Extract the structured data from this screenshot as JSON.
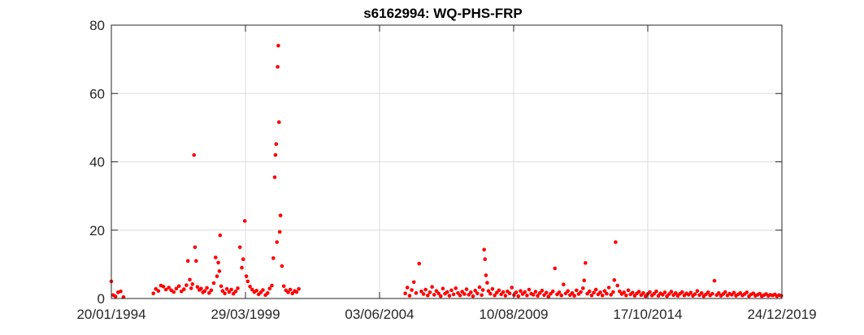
{
  "chart_data": {
    "type": "scatter",
    "title": "s6162994: WQ-PHS-FRP",
    "xlabel": "",
    "ylabel": "",
    "x_axis": {
      "type": "date",
      "range": [
        "1994-01-20",
        "2019-12-24"
      ],
      "ticks": [
        "1994-01-20",
        "1999-03-29",
        "2004-06-03",
        "2009-08-10",
        "2014-10-17",
        "2019-12-24"
      ],
      "tick_labels": [
        "20/01/1994",
        "29/03/1999",
        "03/06/2004",
        "10/08/2009",
        "17/10/2014",
        "24/12/2019"
      ]
    },
    "y_axis": {
      "range": [
        0,
        80
      ],
      "ticks": [
        0,
        20,
        40,
        60,
        80
      ]
    },
    "grid": true,
    "marker_color": "#ff0000",
    "series": [
      {
        "points": [
          [
            "1994-01-20",
            5.0
          ],
          [
            "1994-02-15",
            1.0
          ],
          [
            "1994-03-20",
            0.6
          ],
          [
            "1994-04-25",
            1.8
          ],
          [
            "1994-06-01",
            2.1
          ],
          [
            "1994-07-10",
            0.4
          ],
          [
            "1995-09-05",
            1.5
          ],
          [
            "1995-10-10",
            2.8
          ],
          [
            "1995-11-15",
            2.2
          ],
          [
            "1995-12-20",
            3.8
          ],
          [
            "1996-01-25",
            3.5
          ],
          [
            "1996-03-01",
            2.6
          ],
          [
            "1996-04-10",
            3.2
          ],
          [
            "1996-05-15",
            2.4
          ],
          [
            "1996-06-20",
            1.9
          ],
          [
            "1996-07-25",
            2.9
          ],
          [
            "1996-09-01",
            3.6
          ],
          [
            "1996-10-05",
            2.1
          ],
          [
            "1996-11-10",
            2.7
          ],
          [
            "1996-12-15",
            3.9
          ],
          [
            "1997-01-05",
            11.0
          ],
          [
            "1997-02-01",
            5.5
          ],
          [
            "1997-02-20",
            3.0
          ],
          [
            "1997-03-10",
            4.2
          ],
          [
            "1997-04-01",
            42.0
          ],
          [
            "1997-04-15",
            15.0
          ],
          [
            "1997-05-01",
            11.0
          ],
          [
            "1997-05-20",
            3.4
          ],
          [
            "1997-06-15",
            2.5
          ],
          [
            "1997-07-10",
            2.9
          ],
          [
            "1997-08-05",
            1.8
          ],
          [
            "1997-09-01",
            2.2
          ],
          [
            "1997-10-01",
            3.1
          ],
          [
            "1997-11-01",
            1.6
          ],
          [
            "1997-12-01",
            2.4
          ],
          [
            "1998-01-05",
            4.5
          ],
          [
            "1998-02-01",
            12.0
          ],
          [
            "1998-02-20",
            6.5
          ],
          [
            "1998-03-10",
            10.5
          ],
          [
            "1998-03-25",
            8.0
          ],
          [
            "1998-04-05",
            18.5
          ],
          [
            "1998-04-20",
            3.6
          ],
          [
            "1998-05-10",
            2.2
          ],
          [
            "1998-06-10",
            1.5
          ],
          [
            "1998-07-10",
            2.8
          ],
          [
            "1998-08-10",
            1.9
          ],
          [
            "1998-09-10",
            2.6
          ],
          [
            "1998-10-10",
            1.4
          ],
          [
            "1998-11-10",
            2.1
          ],
          [
            "1998-12-10",
            3.0
          ],
          [
            "1999-01-10",
            15.0
          ],
          [
            "1999-02-05",
            9.0
          ],
          [
            "1999-02-25",
            11.5
          ],
          [
            "1999-03-20",
            22.7
          ],
          [
            "1999-04-10",
            6.5
          ],
          [
            "1999-05-01",
            5.0
          ],
          [
            "1999-06-01",
            3.5
          ],
          [
            "1999-07-01",
            2.6
          ],
          [
            "1999-08-01",
            1.9
          ],
          [
            "1999-09-01",
            2.3
          ],
          [
            "1999-10-01",
            1.2
          ],
          [
            "1999-11-01",
            1.8
          ],
          [
            "1999-12-01",
            2.5
          ],
          [
            "2000-01-05",
            1.0
          ],
          [
            "2000-02-05",
            1.6
          ],
          [
            "2000-03-05",
            2.9
          ],
          [
            "2000-04-05",
            3.8
          ],
          [
            "2000-04-25",
            11.8
          ],
          [
            "2000-05-15",
            35.5
          ],
          [
            "2000-05-25",
            42.0
          ],
          [
            "2000-06-05",
            45.2
          ],
          [
            "2000-06-15",
            16.5
          ],
          [
            "2000-06-25",
            67.8
          ],
          [
            "2000-07-05",
            74.0
          ],
          [
            "2000-07-15",
            51.6
          ],
          [
            "2000-07-25",
            19.5
          ],
          [
            "2000-08-05",
            24.3
          ],
          [
            "2000-08-25",
            9.5
          ],
          [
            "2000-09-20",
            3.6
          ],
          [
            "2000-10-20",
            2.4
          ],
          [
            "2000-11-20",
            1.8
          ],
          [
            "2000-12-20",
            2.6
          ],
          [
            "2001-01-20",
            1.5
          ],
          [
            "2001-02-20",
            2.2
          ],
          [
            "2001-03-20",
            1.9
          ],
          [
            "2001-04-20",
            2.8
          ],
          [
            "2005-06-01",
            1.5
          ],
          [
            "2005-07-01",
            3.2
          ],
          [
            "2005-08-01",
            0.8
          ],
          [
            "2005-09-01",
            2.5
          ],
          [
            "2005-10-01",
            4.8
          ],
          [
            "2005-11-01",
            1.6
          ],
          [
            "2005-12-15",
            10.2
          ],
          [
            "2006-01-15",
            2.1
          ],
          [
            "2006-02-15",
            1.3
          ],
          [
            "2006-03-15",
            2.6
          ],
          [
            "2006-04-15",
            0.9
          ],
          [
            "2006-05-15",
            1.8
          ],
          [
            "2006-06-15",
            3.4
          ],
          [
            "2006-07-15",
            1.1
          ],
          [
            "2006-08-15",
            2.2
          ],
          [
            "2006-09-15",
            1.5
          ],
          [
            "2006-10-15",
            0.7
          ],
          [
            "2006-11-15",
            2.9
          ],
          [
            "2006-12-15",
            1.4
          ],
          [
            "2007-01-15",
            1.9
          ],
          [
            "2007-02-15",
            0.8
          ],
          [
            "2007-03-15",
            2.4
          ],
          [
            "2007-04-15",
            1.2
          ],
          [
            "2007-05-15",
            3.0
          ],
          [
            "2007-06-15",
            1.6
          ],
          [
            "2007-07-15",
            0.9
          ],
          [
            "2007-08-15",
            2.0
          ],
          [
            "2007-09-15",
            1.3
          ],
          [
            "2007-10-15",
            2.7
          ],
          [
            "2007-11-15",
            1.1
          ],
          [
            "2007-12-15",
            1.8
          ],
          [
            "2008-01-15",
            0.7
          ],
          [
            "2008-02-15",
            2.3
          ],
          [
            "2008-03-15",
            1.5
          ],
          [
            "2008-04-15",
            3.3
          ],
          [
            "2008-05-15",
            1.0
          ],
          [
            "2008-06-01",
            2.5
          ],
          [
            "2008-06-20",
            14.3
          ],
          [
            "2008-07-01",
            11.5
          ],
          [
            "2008-07-15",
            6.8
          ],
          [
            "2008-08-01",
            4.6
          ],
          [
            "2008-08-20",
            2.2
          ],
          [
            "2008-09-15",
            1.4
          ],
          [
            "2008-10-15",
            2.8
          ],
          [
            "2008-11-15",
            0.9
          ],
          [
            "2008-12-15",
            1.7
          ],
          [
            "2009-01-15",
            2.4
          ],
          [
            "2009-02-15",
            1.2
          ],
          [
            "2009-03-15",
            1.9
          ],
          [
            "2009-04-15",
            0.8
          ],
          [
            "2009-05-15",
            2.1
          ],
          [
            "2009-06-15",
            1.5
          ],
          [
            "2009-07-15",
            3.2
          ],
          [
            "2009-08-15",
            1.0
          ],
          [
            "2009-09-15",
            1.8
          ],
          [
            "2009-10-15",
            0.7
          ],
          [
            "2009-11-15",
            2.2
          ],
          [
            "2009-12-15",
            1.3
          ],
          [
            "2010-01-15",
            1.9
          ],
          [
            "2010-02-15",
            0.9
          ],
          [
            "2010-03-15",
            2.6
          ],
          [
            "2010-04-15",
            1.4
          ],
          [
            "2010-05-15",
            1.1
          ],
          [
            "2010-06-15",
            2.0
          ],
          [
            "2010-07-15",
            0.8
          ],
          [
            "2010-08-15",
            1.6
          ],
          [
            "2010-09-15",
            2.3
          ],
          [
            "2010-10-15",
            1.0
          ],
          [
            "2010-11-15",
            1.7
          ],
          [
            "2010-12-15",
            0.6
          ],
          [
            "2011-01-15",
            1.4
          ],
          [
            "2011-02-15",
            2.1
          ],
          [
            "2011-03-15",
            8.8
          ],
          [
            "2011-04-15",
            1.2
          ],
          [
            "2011-05-15",
            1.8
          ],
          [
            "2011-06-15",
            0.9
          ],
          [
            "2011-07-15",
            4.1
          ],
          [
            "2011-08-15",
            1.5
          ],
          [
            "2011-09-15",
            2.2
          ],
          [
            "2011-10-15",
            1.0
          ],
          [
            "2011-11-15",
            1.6
          ],
          [
            "2011-12-15",
            0.8
          ],
          [
            "2012-01-15",
            2.4
          ],
          [
            "2012-02-15",
            1.3
          ],
          [
            "2012-03-15",
            1.9
          ],
          [
            "2012-04-15",
            3.0
          ],
          [
            "2012-05-01",
            5.3
          ],
          [
            "2012-05-20",
            10.4
          ],
          [
            "2012-06-15",
            1.4
          ],
          [
            "2012-07-15",
            2.1
          ],
          [
            "2012-08-15",
            0.9
          ],
          [
            "2012-09-15",
            1.7
          ],
          [
            "2012-10-15",
            2.6
          ],
          [
            "2012-11-15",
            1.2
          ],
          [
            "2012-12-15",
            1.8
          ],
          [
            "2013-01-15",
            0.9
          ],
          [
            "2013-02-15",
            2.2
          ],
          [
            "2013-03-15",
            1.4
          ],
          [
            "2013-04-15",
            3.2
          ],
          [
            "2013-05-15",
            1.1
          ],
          [
            "2013-06-15",
            1.9
          ],
          [
            "2013-07-01",
            5.4
          ],
          [
            "2013-07-20",
            16.5
          ],
          [
            "2013-08-15",
            3.8
          ],
          [
            "2013-09-15",
            2.1
          ],
          [
            "2013-10-15",
            1.3
          ],
          [
            "2013-11-15",
            1.8
          ],
          [
            "2013-12-15",
            0.9
          ],
          [
            "2014-01-15",
            2.4
          ],
          [
            "2014-02-15",
            1.2
          ],
          [
            "2014-03-15",
            1.7
          ],
          [
            "2014-04-15",
            0.8
          ],
          [
            "2014-05-15",
            1.5
          ],
          [
            "2014-06-15",
            2.0
          ],
          [
            "2014-07-15",
            1.0
          ],
          [
            "2014-08-15",
            1.6
          ],
          [
            "2014-09-15",
            0.7
          ],
          [
            "2014-10-15",
            1.3
          ],
          [
            "2014-11-15",
            1.9
          ],
          [
            "2014-12-15",
            0.9
          ],
          [
            "2015-01-15",
            1.4
          ],
          [
            "2015-02-15",
            2.1
          ],
          [
            "2015-03-15",
            0.8
          ],
          [
            "2015-04-15",
            1.5
          ],
          [
            "2015-05-15",
            1.1
          ],
          [
            "2015-06-15",
            1.8
          ],
          [
            "2015-07-15",
            0.7
          ],
          [
            "2015-08-15",
            1.3
          ],
          [
            "2015-09-15",
            2.0
          ],
          [
            "2015-10-15",
            1.0
          ],
          [
            "2015-11-15",
            1.6
          ],
          [
            "2015-12-15",
            0.8
          ],
          [
            "2016-01-15",
            1.4
          ],
          [
            "2016-02-15",
            1.9
          ],
          [
            "2016-03-15",
            0.9
          ],
          [
            "2016-04-15",
            1.5
          ],
          [
            "2016-05-15",
            1.1
          ],
          [
            "2016-06-15",
            1.7
          ],
          [
            "2016-07-15",
            0.8
          ],
          [
            "2016-08-15",
            1.3
          ],
          [
            "2016-09-15",
            2.2
          ],
          [
            "2016-10-15",
            1.0
          ],
          [
            "2016-11-15",
            1.6
          ],
          [
            "2016-12-15",
            0.7
          ],
          [
            "2017-01-15",
            1.2
          ],
          [
            "2017-02-15",
            1.8
          ],
          [
            "2017-03-15",
            0.9
          ],
          [
            "2017-04-15",
            1.4
          ],
          [
            "2017-05-15",
            5.2
          ],
          [
            "2017-06-15",
            1.0
          ],
          [
            "2017-07-15",
            1.6
          ],
          [
            "2017-08-15",
            0.8
          ],
          [
            "2017-09-15",
            1.3
          ],
          [
            "2017-10-15",
            1.9
          ],
          [
            "2017-11-15",
            0.9
          ],
          [
            "2017-12-15",
            1.4
          ],
          [
            "2018-01-15",
            1.1
          ],
          [
            "2018-02-15",
            1.7
          ],
          [
            "2018-03-15",
            0.8
          ],
          [
            "2018-04-15",
            1.2
          ],
          [
            "2018-05-15",
            1.6
          ],
          [
            "2018-06-15",
            0.9
          ],
          [
            "2018-07-15",
            1.3
          ],
          [
            "2018-08-15",
            1.8
          ],
          [
            "2018-09-15",
            0.7
          ],
          [
            "2018-10-15",
            1.2
          ],
          [
            "2018-11-15",
            1.5
          ],
          [
            "2018-12-15",
            0.8
          ],
          [
            "2019-01-15",
            1.1
          ],
          [
            "2019-02-15",
            1.4
          ],
          [
            "2019-03-15",
            0.7
          ],
          [
            "2019-04-15",
            1.0
          ],
          [
            "2019-05-15",
            1.3
          ],
          [
            "2019-06-15",
            0.8
          ],
          [
            "2019-07-15",
            1.1
          ],
          [
            "2019-08-15",
            0.9
          ],
          [
            "2019-09-15",
            1.2
          ],
          [
            "2019-10-15",
            0.7
          ],
          [
            "2019-11-15",
            1.0
          ],
          [
            "2019-12-15",
            0.8
          ]
        ]
      }
    ]
  }
}
